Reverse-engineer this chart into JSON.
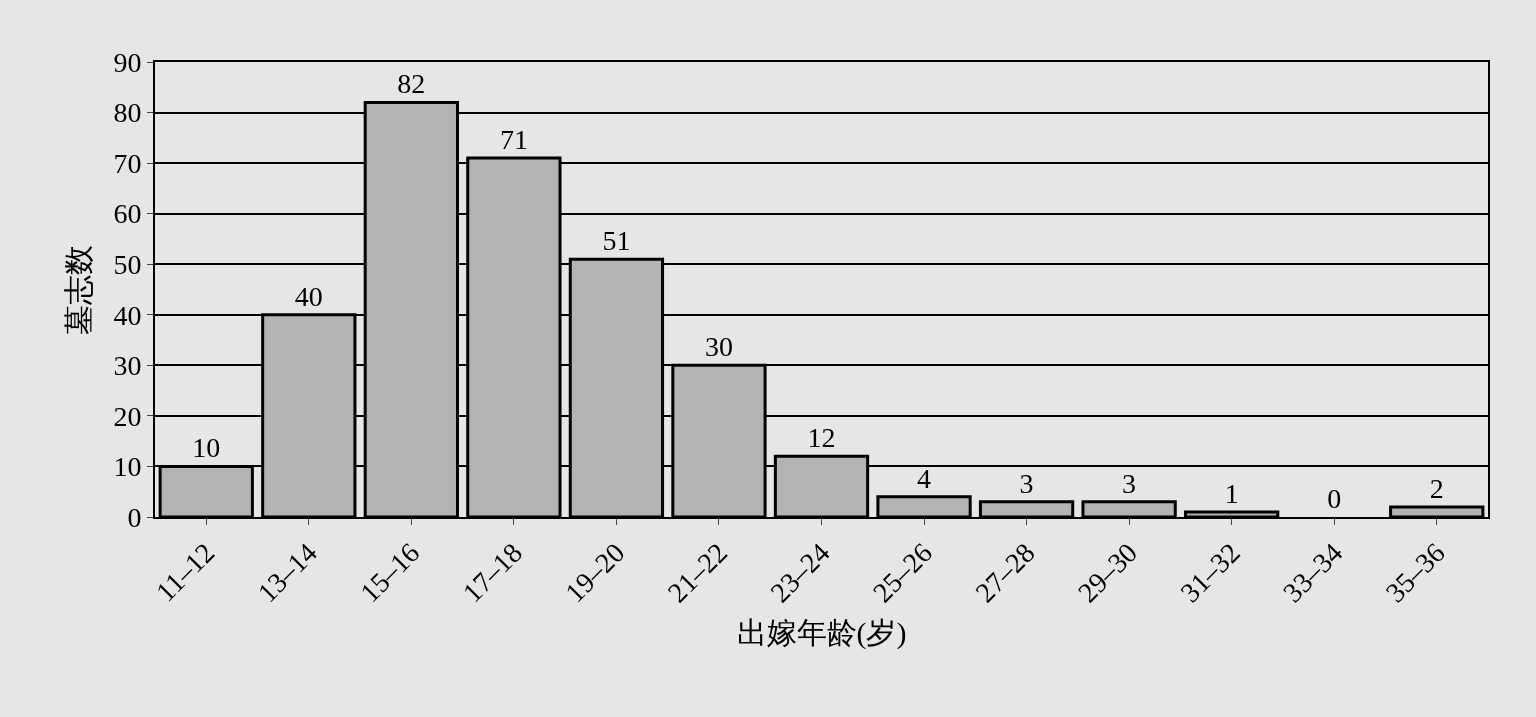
{
  "chart_data": {
    "type": "bar",
    "xlabel": "出嫁年龄(岁)",
    "ylabel": "墓志数",
    "categories": [
      "11–12",
      "13–14",
      "15–16",
      "17–18",
      "19–20",
      "21–22",
      "23–24",
      "25–26",
      "27–28",
      "29–30",
      "31–32",
      "33–34",
      "35–36"
    ],
    "values": [
      10,
      40,
      82,
      71,
      51,
      30,
      12,
      4,
      3,
      3,
      1,
      0,
      2
    ],
    "color": "#b3b3b3",
    "ylim": [
      0,
      90
    ],
    "yticks": [
      0,
      10,
      20,
      30,
      40,
      50,
      60,
      70,
      80,
      90
    ],
    "grid": "y",
    "data_labels": true,
    "legend": false
  }
}
